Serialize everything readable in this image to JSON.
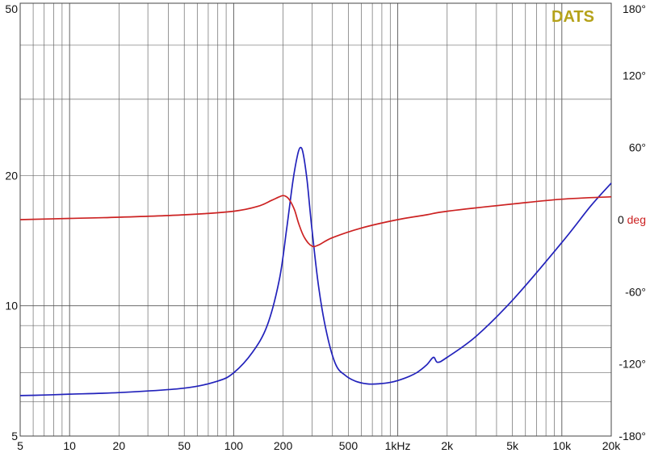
{
  "brand": {
    "text": "DATS",
    "color": "#b5a21a"
  },
  "chart_data": {
    "type": "line",
    "title": "",
    "xlabel": "",
    "ylabel": "",
    "xscale": "log",
    "yscale": "log",
    "xlim": [
      5,
      20000
    ],
    "ylim": [
      5,
      50
    ],
    "y2lim": [
      -180,
      180
    ],
    "grid": true,
    "x_ticks": [
      {
        "value": 5,
        "label": "5"
      },
      {
        "value": 10,
        "label": "10"
      },
      {
        "value": 20,
        "label": "20"
      },
      {
        "value": 50,
        "label": "50"
      },
      {
        "value": 100,
        "label": "100"
      },
      {
        "value": 200,
        "label": "200"
      },
      {
        "value": 500,
        "label": "500"
      },
      {
        "value": 1000,
        "label": "1kHz"
      },
      {
        "value": 2000,
        "label": "2k"
      },
      {
        "value": 5000,
        "label": "5k"
      },
      {
        "value": 10000,
        "label": "10k"
      },
      {
        "value": 20000,
        "label": "20k"
      }
    ],
    "y_ticks": [
      {
        "value": 5,
        "label": "5"
      },
      {
        "value": 10,
        "label": "10"
      },
      {
        "value": 20,
        "label": "20"
      },
      {
        "value": 50,
        "label": "50"
      }
    ],
    "y2_ticks": [
      {
        "value": 180,
        "label": "180°"
      },
      {
        "value": 120,
        "label": "120°"
      },
      {
        "value": 60,
        "label": "60°"
      },
      {
        "value": 0,
        "label": "0",
        "suffix": "deg",
        "suffix_color": "#cc2222"
      },
      {
        "value": -60,
        "label": "-60°"
      },
      {
        "value": -120,
        "label": "-120°"
      },
      {
        "value": -180,
        "label": "-180°"
      }
    ],
    "series": [
      {
        "axis": "left",
        "color": "#2222bb",
        "x": [
          5,
          7,
          10,
          20,
          50,
          80,
          100,
          130,
          160,
          190,
          210,
          230,
          245,
          255,
          265,
          280,
          300,
          330,
          370,
          420,
          480,
          550,
          650,
          750,
          900,
          1100,
          1300,
          1500,
          1650,
          1750,
          2000,
          3000,
          5000,
          10000,
          15000,
          20000
        ],
        "values": [
          6.2,
          6.22,
          6.25,
          6.3,
          6.45,
          6.7,
          7.0,
          7.8,
          9.0,
          11.5,
          15.0,
          19.5,
          22.3,
          23.2,
          22.5,
          19.5,
          15.0,
          11.0,
          8.6,
          7.3,
          6.9,
          6.7,
          6.6,
          6.6,
          6.65,
          6.8,
          7.0,
          7.3,
          7.6,
          7.4,
          7.6,
          8.5,
          10.3,
          14.0,
          17.0,
          19.2
        ]
      },
      {
        "axis": "right",
        "color": "#cc2222",
        "x": [
          5,
          10,
          20,
          50,
          100,
          140,
          170,
          190,
          200,
          210,
          220,
          235,
          250,
          270,
          300,
          330,
          400,
          600,
          1000,
          1500,
          2000,
          5000,
          10000,
          20000
        ],
        "values": [
          0,
          1,
          2,
          4,
          7,
          11,
          16,
          19,
          20,
          19,
          16,
          8,
          -4,
          -15,
          -22,
          -21,
          -15,
          -7,
          0,
          4,
          7,
          13,
          17,
          19
        ]
      }
    ]
  }
}
